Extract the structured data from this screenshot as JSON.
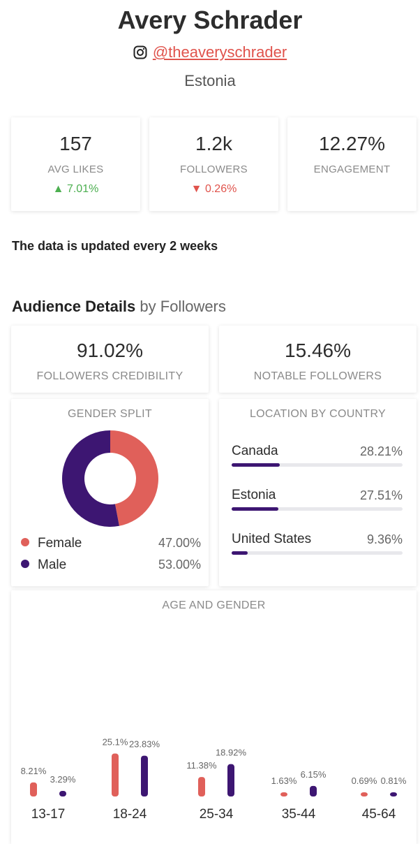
{
  "profile": {
    "name": "Avery Schrader",
    "handle": "@theaveryschrader",
    "country": "Estonia"
  },
  "stats": [
    {
      "value": "157",
      "label": "AVG LIKES",
      "change": "7.01%",
      "direction": "up"
    },
    {
      "value": "1.2k",
      "label": "FOLLOWERS",
      "change": "0.26%",
      "direction": "down"
    },
    {
      "value": "12.27%",
      "label": "ENGAGEMENT",
      "change": "",
      "direction": ""
    }
  ],
  "update_note": "The data is updated every 2 weeks",
  "audience": {
    "title": "Audience Details",
    "subtitle": "by Followers",
    "credibility": {
      "value": "91.02%",
      "label": "FOLLOWERS CREDIBILITY"
    },
    "notable": {
      "value": "15.46%",
      "label": "NOTABLE FOLLOWERS"
    }
  },
  "gender": {
    "title": "GENDER SPLIT",
    "items": [
      {
        "label": "Female",
        "pct": "47.00%",
        "value": 47.0,
        "color": "#e0605a"
      },
      {
        "label": "Male",
        "pct": "53.00%",
        "value": 53.0,
        "color": "#3d1672"
      }
    ]
  },
  "location": {
    "title": "LOCATION BY COUNTRY",
    "items": [
      {
        "name": "Canada",
        "pct": "28.21%",
        "value": 28.21
      },
      {
        "name": "Estonia",
        "pct": "27.51%",
        "value": 27.51
      },
      {
        "name": "United States",
        "pct": "9.36%",
        "value": 9.36
      }
    ]
  },
  "chart_data": {
    "type": "bar",
    "title": "AGE AND GENDER",
    "categories": [
      "13-17",
      "18-24",
      "25-34",
      "35-44",
      "45-64"
    ],
    "series": [
      {
        "name": "Female",
        "color": "#e0605a",
        "values": [
          8.21,
          25.1,
          11.38,
          1.63,
          0.69
        ],
        "labels": [
          "8.21%",
          "25.1%",
          "11.38%",
          "1.63%",
          "0.69%"
        ]
      },
      {
        "name": "Male",
        "color": "#3d1672",
        "values": [
          3.29,
          23.83,
          18.92,
          6.15,
          0.81
        ],
        "labels": [
          "3.29%",
          "23.83%",
          "18.92%",
          "6.15%",
          "0.81%"
        ]
      }
    ]
  }
}
